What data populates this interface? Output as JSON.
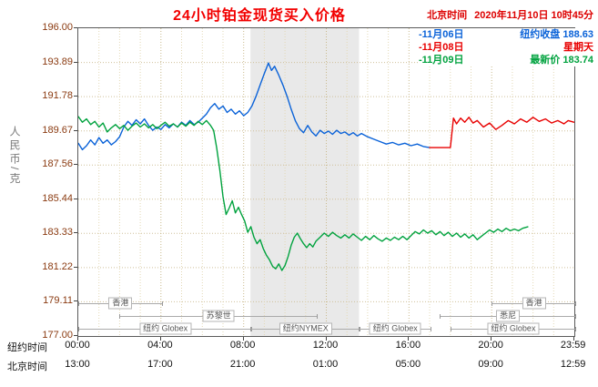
{
  "header": {
    "title": "24小时铂金现货买入价格",
    "beijing_time_label": "北京时间",
    "datetime": "2020年11月10日 10时45分"
  },
  "axes": {
    "y_label": "人民币/克",
    "y_ticks": [
      "196.00",
      "193.89",
      "191.78",
      "189.67",
      "187.56",
      "185.44",
      "183.33",
      "181.22",
      "179.11",
      "177.00"
    ],
    "x_row1_label": "纽约时间",
    "x_row2_label": "北京时间",
    "x_row1_ticks": [
      "00:00",
      "04:00",
      "08:00",
      "12:00",
      "16:00",
      "20:00",
      "23:59"
    ],
    "x_row2_ticks": [
      "13:00",
      "17:00",
      "21:00",
      "01:00",
      "05:00",
      "09:00",
      "12:59"
    ]
  },
  "chart_data": {
    "type": "line",
    "title": "24小时铂金现货买入价格",
    "ylabel": "人民币/克",
    "ylim": [
      177.0,
      196.0
    ],
    "xlim_hours": [
      0,
      24
    ],
    "x_tick_hours": [
      0,
      4,
      8,
      12,
      16,
      20,
      23.983
    ],
    "grid": true,
    "band_hours": [
      8.33,
      13.58
    ],
    "band_color": "#e9e9e9",
    "sessions": [
      {
        "row": 0,
        "label": "香港",
        "start": 0,
        "end": 4
      },
      {
        "row": 0,
        "label": "香港",
        "start": 20,
        "end": 24
      },
      {
        "row": 1,
        "label": "苏黎世",
        "start": 2,
        "end": 11.5
      },
      {
        "row": 1,
        "label": "悉尼",
        "start": 17.5,
        "end": 24
      },
      {
        "row": 2,
        "label": "纽约 Globex",
        "start": 0,
        "end": 8.33
      },
      {
        "row": 2,
        "label": "纽约NYMEX",
        "start": 8.33,
        "end": 13.58
      },
      {
        "row": 2,
        "label": "纽约 Globex",
        "start": 13.58,
        "end": 17
      },
      {
        "row": 2,
        "label": "纽约 Globex",
        "start": 18,
        "end": 24
      }
    ],
    "series": [
      {
        "marker": "-",
        "date": "11月06日",
        "legend": "纽约收盘 188.63",
        "color": "#0a62d8",
        "points": [
          [
            0,
            188.9
          ],
          [
            0.2,
            188.5
          ],
          [
            0.4,
            188.75
          ],
          [
            0.6,
            189.1
          ],
          [
            0.8,
            188.8
          ],
          [
            1,
            189.25
          ],
          [
            1.2,
            188.9
          ],
          [
            1.4,
            189.1
          ],
          [
            1.6,
            188.8
          ],
          [
            1.8,
            189.0
          ],
          [
            2,
            189.3
          ],
          [
            2.2,
            189.9
          ],
          [
            2.4,
            190.25
          ],
          [
            2.6,
            190.0
          ],
          [
            2.8,
            190.35
          ],
          [
            3,
            190.1
          ],
          [
            3.2,
            190.4
          ],
          [
            3.4,
            190.0
          ],
          [
            3.6,
            189.7
          ],
          [
            3.8,
            189.9
          ],
          [
            4,
            189.75
          ],
          [
            4.2,
            190.05
          ],
          [
            4.4,
            189.85
          ],
          [
            4.6,
            190.1
          ],
          [
            4.8,
            189.9
          ],
          [
            5,
            190.2
          ],
          [
            5.2,
            190.0
          ],
          [
            5.4,
            190.3
          ],
          [
            5.6,
            190.05
          ],
          [
            5.8,
            190.2
          ],
          [
            6,
            190.45
          ],
          [
            6.2,
            190.7
          ],
          [
            6.4,
            191.1
          ],
          [
            6.6,
            191.35
          ],
          [
            6.8,
            191.0
          ],
          [
            7,
            191.2
          ],
          [
            7.2,
            190.8
          ],
          [
            7.4,
            191.0
          ],
          [
            7.6,
            190.7
          ],
          [
            7.8,
            190.9
          ],
          [
            8,
            190.6
          ],
          [
            8.2,
            190.8
          ],
          [
            8.4,
            191.2
          ],
          [
            8.6,
            191.8
          ],
          [
            8.8,
            192.5
          ],
          [
            9,
            193.2
          ],
          [
            9.2,
            193.85
          ],
          [
            9.35,
            193.4
          ],
          [
            9.5,
            193.65
          ],
          [
            9.7,
            193.1
          ],
          [
            9.9,
            192.5
          ],
          [
            10.1,
            191.8
          ],
          [
            10.3,
            191.0
          ],
          [
            10.5,
            190.3
          ],
          [
            10.7,
            189.8
          ],
          [
            10.9,
            189.55
          ],
          [
            11.1,
            190.0
          ],
          [
            11.3,
            189.6
          ],
          [
            11.5,
            189.35
          ],
          [
            11.7,
            189.7
          ],
          [
            11.9,
            189.5
          ],
          [
            12.1,
            189.65
          ],
          [
            12.3,
            189.45
          ],
          [
            12.5,
            189.7
          ],
          [
            12.7,
            189.5
          ],
          [
            12.9,
            189.6
          ],
          [
            13.1,
            189.4
          ],
          [
            13.3,
            189.55
          ],
          [
            13.5,
            189.35
          ],
          [
            13.7,
            189.5
          ],
          [
            14,
            189.3
          ],
          [
            14.3,
            189.15
          ],
          [
            14.6,
            189.0
          ],
          [
            14.9,
            188.85
          ],
          [
            15.2,
            188.95
          ],
          [
            15.5,
            188.8
          ],
          [
            15.8,
            188.9
          ],
          [
            16.1,
            188.75
          ],
          [
            16.4,
            188.85
          ],
          [
            16.7,
            188.7
          ],
          [
            17,
            188.63
          ]
        ]
      },
      {
        "marker": "-",
        "date": "11月08日",
        "legend": "星期天",
        "color": "#e80000",
        "points": [
          [
            17,
            188.63
          ],
          [
            17.5,
            188.63
          ],
          [
            18,
            188.63
          ],
          [
            18.15,
            190.45
          ],
          [
            18.3,
            190.1
          ],
          [
            18.5,
            190.45
          ],
          [
            18.7,
            190.2
          ],
          [
            18.9,
            190.5
          ],
          [
            19.1,
            190.15
          ],
          [
            19.3,
            190.3
          ],
          [
            19.6,
            189.9
          ],
          [
            19.9,
            190.15
          ],
          [
            20.2,
            189.75
          ],
          [
            20.5,
            190.0
          ],
          [
            20.8,
            190.3
          ],
          [
            21.1,
            190.1
          ],
          [
            21.4,
            190.4
          ],
          [
            21.7,
            190.2
          ],
          [
            22,
            190.5
          ],
          [
            22.3,
            190.25
          ],
          [
            22.6,
            190.4
          ],
          [
            22.9,
            190.15
          ],
          [
            23.2,
            190.3
          ],
          [
            23.5,
            190.1
          ],
          [
            23.7,
            190.3
          ],
          [
            23.98,
            190.2
          ]
        ]
      },
      {
        "marker": "-",
        "date": "11月09日",
        "legend": "最新价 183.74",
        "color": "#00a23e",
        "points": [
          [
            0,
            190.55
          ],
          [
            0.2,
            190.2
          ],
          [
            0.4,
            190.4
          ],
          [
            0.6,
            190.05
          ],
          [
            0.8,
            190.25
          ],
          [
            1,
            189.9
          ],
          [
            1.2,
            190.15
          ],
          [
            1.4,
            189.6
          ],
          [
            1.6,
            189.85
          ],
          [
            1.8,
            190.05
          ],
          [
            2,
            189.8
          ],
          [
            2.2,
            190.0
          ],
          [
            2.4,
            189.7
          ],
          [
            2.6,
            189.95
          ],
          [
            2.8,
            190.15
          ],
          [
            3,
            189.9
          ],
          [
            3.2,
            190.1
          ],
          [
            3.4,
            189.85
          ],
          [
            3.6,
            190.05
          ],
          [
            3.8,
            189.8
          ],
          [
            4,
            190.0
          ],
          [
            4.2,
            190.2
          ],
          [
            4.4,
            189.95
          ],
          [
            4.6,
            190.1
          ],
          [
            4.8,
            189.9
          ],
          [
            5,
            190.15
          ],
          [
            5.2,
            189.95
          ],
          [
            5.4,
            190.2
          ],
          [
            5.6,
            190.0
          ],
          [
            5.8,
            190.25
          ],
          [
            6,
            190.05
          ],
          [
            6.2,
            190.3
          ],
          [
            6.4,
            190.0
          ],
          [
            6.55,
            189.7
          ],
          [
            6.7,
            188.6
          ],
          [
            6.85,
            187.2
          ],
          [
            7,
            185.6
          ],
          [
            7.15,
            184.5
          ],
          [
            7.3,
            184.9
          ],
          [
            7.45,
            185.35
          ],
          [
            7.6,
            184.6
          ],
          [
            7.75,
            184.95
          ],
          [
            7.9,
            184.5
          ],
          [
            8.05,
            184.1
          ],
          [
            8.2,
            183.4
          ],
          [
            8.35,
            183.75
          ],
          [
            8.5,
            183.1
          ],
          [
            8.65,
            182.7
          ],
          [
            8.8,
            182.95
          ],
          [
            8.95,
            182.4
          ],
          [
            9.1,
            182.0
          ],
          [
            9.25,
            181.7
          ],
          [
            9.4,
            181.3
          ],
          [
            9.55,
            181.15
          ],
          [
            9.7,
            181.45
          ],
          [
            9.85,
            181.05
          ],
          [
            10,
            181.35
          ],
          [
            10.15,
            181.9
          ],
          [
            10.3,
            182.6
          ],
          [
            10.45,
            183.1
          ],
          [
            10.6,
            183.35
          ],
          [
            10.75,
            183.0
          ],
          [
            10.9,
            182.7
          ],
          [
            11.05,
            182.45
          ],
          [
            11.2,
            182.7
          ],
          [
            11.35,
            182.5
          ],
          [
            11.5,
            182.85
          ],
          [
            11.7,
            183.1
          ],
          [
            11.9,
            183.35
          ],
          [
            12.1,
            183.15
          ],
          [
            12.3,
            183.4
          ],
          [
            12.5,
            183.2
          ],
          [
            12.7,
            183.05
          ],
          [
            12.9,
            183.25
          ],
          [
            13.1,
            183.05
          ],
          [
            13.3,
            183.3
          ],
          [
            13.5,
            183.1
          ],
          [
            13.7,
            182.9
          ],
          [
            13.9,
            183.15
          ],
          [
            14.1,
            182.95
          ],
          [
            14.3,
            183.2
          ],
          [
            14.5,
            183.0
          ],
          [
            14.7,
            182.85
          ],
          [
            14.9,
            183.05
          ],
          [
            15.1,
            182.9
          ],
          [
            15.3,
            183.1
          ],
          [
            15.5,
            182.95
          ],
          [
            15.7,
            183.15
          ],
          [
            15.9,
            182.95
          ],
          [
            16.1,
            183.2
          ],
          [
            16.3,
            183.45
          ],
          [
            16.5,
            183.3
          ],
          [
            16.7,
            183.55
          ],
          [
            16.9,
            183.35
          ],
          [
            17.1,
            183.5
          ],
          [
            17.3,
            183.25
          ],
          [
            17.5,
            183.45
          ],
          [
            17.7,
            183.2
          ],
          [
            17.9,
            183.4
          ],
          [
            18.1,
            183.15
          ],
          [
            18.3,
            183.35
          ],
          [
            18.5,
            183.1
          ],
          [
            18.7,
            183.3
          ],
          [
            18.9,
            183.05
          ],
          [
            19.1,
            183.25
          ],
          [
            19.3,
            182.95
          ],
          [
            19.5,
            183.15
          ],
          [
            19.7,
            183.35
          ],
          [
            19.9,
            183.55
          ],
          [
            20.1,
            183.4
          ],
          [
            20.3,
            183.6
          ],
          [
            20.5,
            183.45
          ],
          [
            20.7,
            183.65
          ],
          [
            20.9,
            183.5
          ],
          [
            21.1,
            183.6
          ],
          [
            21.3,
            183.5
          ],
          [
            21.5,
            183.65
          ],
          [
            21.75,
            183.74
          ]
        ]
      }
    ]
  }
}
